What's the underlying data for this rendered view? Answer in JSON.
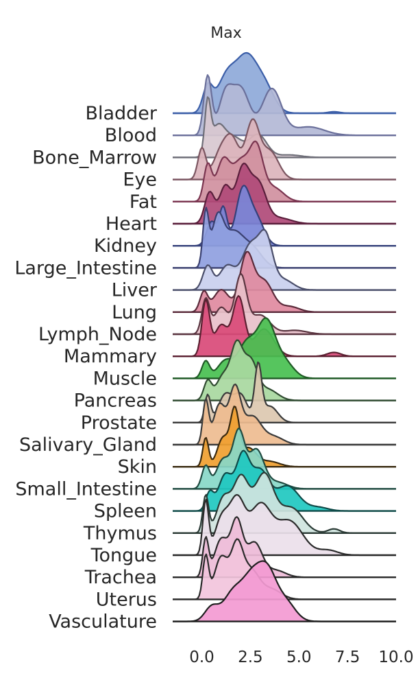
{
  "chart_data": {
    "type": "ridgeline",
    "title": "Max",
    "xlim": [
      -1.5,
      10.0
    ],
    "x_ticks": [
      "0.0",
      "2.5",
      "5.0",
      "7.5",
      "10.0"
    ],
    "grid": false,
    "series": [
      {
        "name": "Bladder",
        "color": "#8ea9d9",
        "line": "#3b5ea8",
        "peaks": [
          [
            0.3,
            0.5,
            0.25
          ],
          [
            1.3,
            0.75,
            0.5
          ],
          [
            2.3,
            1.0,
            0.5
          ],
          [
            3.2,
            0.55,
            0.5
          ],
          [
            6.8,
            0.03,
            0.3
          ]
        ]
      },
      {
        "name": "Blood",
        "color": "#b3b8d6",
        "line": "#6a6f9a",
        "peaks": [
          [
            0.3,
            0.7,
            0.2
          ],
          [
            1.2,
            0.45,
            0.35
          ],
          [
            2.0,
            0.55,
            0.45
          ],
          [
            3.6,
            0.55,
            0.5
          ],
          [
            5.5,
            0.1,
            0.8
          ]
        ]
      },
      {
        "name": "Bone_Marrow",
        "color": "#d8c8d0",
        "line": "#6e6e78",
        "peaks": [
          [
            0.3,
            1.0,
            0.15
          ],
          [
            0.8,
            0.55,
            0.35
          ],
          [
            1.6,
            0.4,
            0.5
          ],
          [
            2.9,
            0.45,
            0.45
          ],
          [
            4.5,
            0.05,
            0.6
          ]
        ]
      },
      {
        "name": "Eye",
        "color": "#dcb4bc",
        "line": "#7b5560",
        "peaks": [
          [
            0.0,
            0.55,
            0.2
          ],
          [
            1.0,
            0.5,
            0.4
          ],
          [
            1.6,
            0.6,
            0.35
          ],
          [
            2.6,
            1.0,
            0.35
          ],
          [
            3.5,
            0.5,
            0.45
          ]
        ]
      },
      {
        "name": "Fat",
        "color": "#d090a0",
        "line": "#7a3550",
        "peaks": [
          [
            0.3,
            0.65,
            0.2
          ],
          [
            1.1,
            0.75,
            0.35
          ],
          [
            2.0,
            0.7,
            0.4
          ],
          [
            2.8,
            0.95,
            0.35
          ],
          [
            3.7,
            0.25,
            0.5
          ]
        ]
      },
      {
        "name": "Heart",
        "color": "#b04a78",
        "line": "#5a1f3c",
        "peaks": [
          [
            0.4,
            0.55,
            0.25
          ],
          [
            1.2,
            0.65,
            0.3
          ],
          [
            2.1,
            0.95,
            0.35
          ],
          [
            2.9,
            0.7,
            0.4
          ],
          [
            4.0,
            0.1,
            0.6
          ]
        ]
      },
      {
        "name": "Kidney",
        "color": "#7a85d8",
        "line": "#34407a",
        "peaks": [
          [
            0.5,
            0.45,
            0.25
          ],
          [
            1.1,
            0.7,
            0.2
          ],
          [
            2.1,
            1.0,
            0.35
          ],
          [
            2.8,
            0.5,
            0.4
          ]
        ]
      },
      {
        "name": "Large_Intestine",
        "color": "#8fa0e0",
        "line": "#3a4070",
        "peaks": [
          [
            0.2,
            0.7,
            0.15
          ],
          [
            0.8,
            0.6,
            0.3
          ],
          [
            1.6,
            0.45,
            0.5
          ],
          [
            2.6,
            0.25,
            0.5
          ]
        ]
      },
      {
        "name": "Liver",
        "color": "#c9cfee",
        "line": "#4a4e6a",
        "peaks": [
          [
            0.3,
            0.35,
            0.25
          ],
          [
            1.3,
            0.35,
            0.4
          ],
          [
            2.5,
            0.65,
            0.45
          ],
          [
            3.3,
            0.7,
            0.35
          ],
          [
            4.2,
            0.15,
            0.5
          ]
        ]
      },
      {
        "name": "Lung",
        "color": "#e08aa0",
        "line": "#5a2a3a",
        "peaks": [
          [
            0.1,
            0.35,
            0.2
          ],
          [
            1.0,
            0.4,
            0.4
          ],
          [
            2.3,
            1.0,
            0.35
          ],
          [
            3.2,
            0.55,
            0.45
          ],
          [
            4.5,
            0.1,
            0.5
          ]
        ]
      },
      {
        "name": "Lymph_Node",
        "color": "#e8c0ca",
        "line": "#5a3540",
        "peaks": [
          [
            0.2,
            0.45,
            0.2
          ],
          [
            1.0,
            0.35,
            0.35
          ],
          [
            2.0,
            0.75,
            0.3
          ],
          [
            3.0,
            0.25,
            0.5
          ],
          [
            4.8,
            0.05,
            0.6
          ]
        ]
      },
      {
        "name": "Mammary",
        "color": "#d94a78",
        "line": "#5a1f30",
        "peaks": [
          [
            0.2,
            0.7,
            0.2
          ],
          [
            1.0,
            0.4,
            0.35
          ],
          [
            1.9,
            0.75,
            0.3
          ],
          [
            3.2,
            0.35,
            0.5
          ],
          [
            6.8,
            0.05,
            0.35
          ]
        ]
      },
      {
        "name": "Muscle",
        "color": "#48c050",
        "line": "#1f5a25",
        "peaks": [
          [
            0.2,
            0.3,
            0.2
          ],
          [
            1.2,
            0.3,
            0.4
          ],
          [
            2.3,
            0.6,
            0.45
          ],
          [
            3.3,
            0.95,
            0.45
          ],
          [
            4.2,
            0.3,
            0.5
          ]
        ]
      },
      {
        "name": "Pancreas",
        "color": "#a8d8a0",
        "line": "#2f4a30",
        "peaks": [
          [
            0.3,
            0.35,
            0.2
          ],
          [
            1.1,
            0.45,
            0.35
          ],
          [
            1.8,
            0.95,
            0.3
          ],
          [
            2.5,
            0.7,
            0.35
          ],
          [
            3.4,
            0.2,
            0.5
          ]
        ]
      },
      {
        "name": "Prostate",
        "color": "#dcc8b0",
        "line": "#3a3a3a",
        "peaks": [
          [
            0.3,
            0.5,
            0.15
          ],
          [
            1.2,
            0.5,
            0.35
          ],
          [
            2.0,
            0.5,
            0.35
          ],
          [
            2.9,
            1.0,
            0.18
          ],
          [
            3.5,
            0.3,
            0.4
          ]
        ]
      },
      {
        "name": "Salivary_Gland",
        "color": "#eebc90",
        "line": "#3a3a3a",
        "peaks": [
          [
            0.2,
            0.55,
            0.15
          ],
          [
            0.9,
            0.5,
            0.3
          ],
          [
            1.7,
            0.7,
            0.3
          ],
          [
            2.6,
            0.35,
            0.45
          ],
          [
            3.7,
            0.1,
            0.5
          ]
        ]
      },
      {
        "name": "Skin",
        "color": "#f0a030",
        "line": "#3a2a10",
        "peaks": [
          [
            0.2,
            0.55,
            0.15
          ],
          [
            1.1,
            0.55,
            0.3
          ],
          [
            1.7,
            1.0,
            0.22
          ],
          [
            2.4,
            0.35,
            0.4
          ],
          [
            3.5,
            0.1,
            0.5
          ]
        ]
      },
      {
        "name": "Small_Intestine",
        "color": "#88d8c8",
        "line": "#1f4a40",
        "peaks": [
          [
            0.2,
            0.35,
            0.2
          ],
          [
            1.1,
            0.45,
            0.35
          ],
          [
            1.9,
            0.85,
            0.3
          ],
          [
            2.8,
            0.6,
            0.4
          ],
          [
            3.9,
            0.1,
            0.5
          ]
        ]
      },
      {
        "name": "Spleen",
        "color": "#20c8c0",
        "line": "#0f4a48",
        "peaks": [
          [
            0.4,
            0.25,
            0.2
          ],
          [
            1.2,
            0.5,
            0.35
          ],
          [
            2.1,
            0.75,
            0.35
          ],
          [
            3.0,
            0.55,
            0.45
          ],
          [
            4.4,
            0.35,
            0.6
          ],
          [
            6.0,
            0.05,
            0.5
          ]
        ]
      },
      {
        "name": "Thymus",
        "color": "#cfe4de",
        "line": "#2a3a35",
        "peaks": [
          [
            0.2,
            0.45,
            0.15
          ],
          [
            1.1,
            0.4,
            0.35
          ],
          [
            2.0,
            0.65,
            0.4
          ],
          [
            3.2,
            0.7,
            0.5
          ],
          [
            4.6,
            0.3,
            0.6
          ],
          [
            6.8,
            0.05,
            0.3
          ]
        ]
      },
      {
        "name": "Tongue",
        "color": "#ece0ea",
        "line": "#2a2a2a",
        "peaks": [
          [
            0.2,
            0.55,
            0.15
          ],
          [
            1.0,
            0.35,
            0.35
          ],
          [
            1.8,
            0.55,
            0.4
          ],
          [
            3.0,
            0.5,
            0.55
          ],
          [
            4.5,
            0.35,
            0.7
          ],
          [
            6.5,
            0.05,
            0.5
          ]
        ]
      },
      {
        "name": "Trachea",
        "color": "#eebcd8",
        "line": "#2a2a2a",
        "peaks": [
          [
            0.2,
            0.55,
            0.15
          ],
          [
            1.0,
            0.55,
            0.35
          ],
          [
            1.8,
            0.8,
            0.3
          ],
          [
            2.7,
            0.5,
            0.4
          ],
          [
            3.8,
            0.1,
            0.5
          ]
        ]
      },
      {
        "name": "Uterus",
        "color": "#f2c4dc",
        "line": "#2a2a2a",
        "peaks": [
          [
            0.2,
            0.65,
            0.15
          ],
          [
            1.0,
            0.65,
            0.35
          ],
          [
            1.8,
            0.75,
            0.3
          ],
          [
            2.5,
            0.45,
            0.45
          ],
          [
            3.6,
            0.15,
            0.5
          ]
        ]
      },
      {
        "name": "Vasculature",
        "color": "#f39ad2",
        "line": "#1f1f1f",
        "peaks": [
          [
            0.5,
            0.25,
            0.35
          ],
          [
            1.6,
            0.5,
            0.5
          ],
          [
            2.6,
            0.75,
            0.5
          ],
          [
            3.4,
            0.75,
            0.45
          ],
          [
            4.3,
            0.35,
            0.5
          ]
        ]
      }
    ]
  }
}
